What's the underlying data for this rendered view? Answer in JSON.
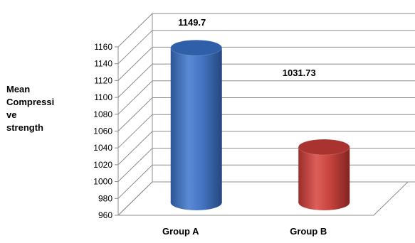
{
  "chart_data": {
    "type": "bar",
    "style": "3d-cylinder",
    "title": "",
    "xlabel": "",
    "ylabel": "Mean\nCompressi\nve\nstrength",
    "categories": [
      "Group A",
      "Group B"
    ],
    "values": [
      1149.7,
      1031.73
    ],
    "data_labels": [
      "1149.7",
      "1031.73"
    ],
    "colors": [
      "#3f70bf",
      "#c0413e"
    ],
    "ylim": [
      960,
      1160
    ],
    "yticks": [
      960,
      980,
      1000,
      1020,
      1040,
      1060,
      1080,
      1100,
      1120,
      1140,
      1160
    ],
    "grid": true,
    "legend": "none"
  }
}
